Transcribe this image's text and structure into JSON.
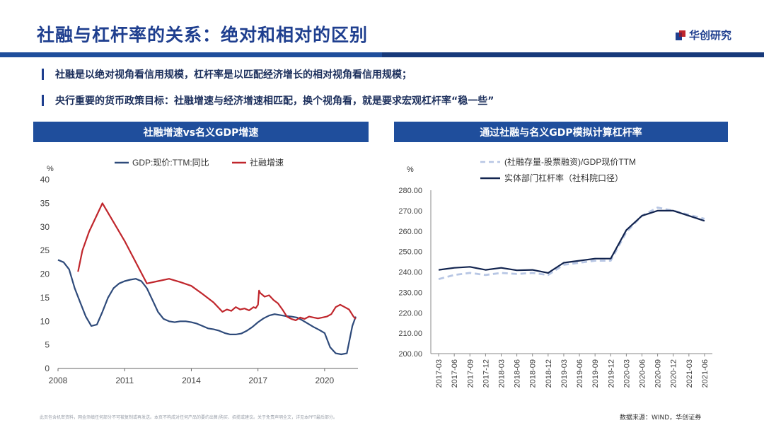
{
  "header": {
    "title": "社融与杠杆率的关系：绝对和相对的区别",
    "logo_text": "华创研究"
  },
  "bullets": [
    "社融是以绝对视角看信用规模，杠杆率是以匹配经济增长的相对视角看信用规模；",
    "央行重要的货币政策目标：社融增速与经济增速相匹配，换个视角看，就是要求宏观杠杆率“稳一些”"
  ],
  "colors": {
    "brand": "#1f3f8f",
    "series_gdp": "#2e4a7a",
    "series_tsf": "#c0262c",
    "series_dark": "#12244f",
    "series_light": "#b7c6e4"
  },
  "chart_data": [
    {
      "type": "line",
      "panel_title": "社融增速vs名义GDP增速",
      "ylabel": "%",
      "ylim": [
        0,
        40
      ],
      "yticks": [
        "0",
        "5",
        "10",
        "15",
        "20",
        "25",
        "30",
        "35",
        "40"
      ],
      "xlim": [
        2008,
        2021.5
      ],
      "xticks": [
        "2008",
        "2011",
        "2014",
        "2017",
        "2020"
      ],
      "series": [
        {
          "name": "GDP:现价:TTM:同比",
          "x": [
            2008.0,
            2008.25,
            2008.5,
            2008.75,
            2009.0,
            2009.25,
            2009.5,
            2009.75,
            2010.0,
            2010.25,
            2010.5,
            2010.75,
            2011.0,
            2011.25,
            2011.5,
            2011.75,
            2012.0,
            2012.25,
            2012.5,
            2012.75,
            2013.0,
            2013.25,
            2013.5,
            2013.75,
            2014.0,
            2014.25,
            2014.5,
            2014.75,
            2015.0,
            2015.25,
            2015.5,
            2015.75,
            2016.0,
            2016.25,
            2016.5,
            2016.75,
            2017.0,
            2017.25,
            2017.5,
            2017.75,
            2018.0,
            2018.25,
            2018.5,
            2018.75,
            2019.0,
            2019.25,
            2019.5,
            2019.75,
            2020.0,
            2020.25,
            2020.5,
            2020.75,
            2021.0,
            2021.25,
            2021.4
          ],
          "values": [
            23,
            22.5,
            21,
            17,
            14,
            11,
            9,
            9.3,
            12,
            15,
            17,
            18,
            18.5,
            18.8,
            19,
            18.5,
            17,
            14.5,
            12,
            10.5,
            10,
            9.8,
            10,
            10,
            9.8,
            9.5,
            9,
            8.5,
            8.3,
            8,
            7.5,
            7.2,
            7.2,
            7.4,
            8,
            8.8,
            9.8,
            10.6,
            11.2,
            11.5,
            11.3,
            11.1,
            11,
            10.8,
            10.2,
            9.5,
            8.8,
            8.2,
            7.5,
            4.5,
            3.2,
            3.0,
            3.2,
            9,
            11
          ]
        },
        {
          "name": "社融增速",
          "x": [
            2008.9,
            2009.1,
            2009.4,
            2009.7,
            2010.0,
            2010.5,
            2011.0,
            2011.5,
            2012.0,
            2012.5,
            2013.0,
            2013.5,
            2014.0,
            2014.5,
            2015.0,
            2015.4,
            2015.6,
            2015.8,
            2016.0,
            2016.2,
            2016.4,
            2016.6,
            2016.8,
            2016.9,
            2017.0,
            2017.05,
            2017.1,
            2017.3,
            2017.5,
            2017.7,
            2017.9,
            2018.1,
            2018.3,
            2018.5,
            2018.7,
            2018.9,
            2019.1,
            2019.3,
            2019.5,
            2019.7,
            2019.9,
            2020.1,
            2020.3,
            2020.5,
            2020.7,
            2020.9,
            2021.1,
            2021.3,
            2021.4
          ],
          "values": [
            20.5,
            25,
            29,
            32,
            35,
            31,
            27,
            22.5,
            18,
            18.5,
            19,
            18.3,
            17.5,
            15.8,
            14,
            12,
            12.5,
            12.2,
            13,
            12.5,
            12.7,
            12.3,
            13,
            12.8,
            13.5,
            16.5,
            16,
            15.2,
            15.5,
            14.5,
            13.8,
            12.5,
            11,
            10.5,
            10.2,
            10.8,
            10.5,
            11,
            10.8,
            10.6,
            10.8,
            11,
            11.5,
            13,
            13.5,
            13,
            12.5,
            11,
            10.5
          ]
        }
      ]
    },
    {
      "type": "line",
      "panel_title": "通过社融与名义GDP模拟计算杠杆率",
      "ylabel": "%",
      "ylim": [
        200,
        280
      ],
      "yticks": [
        "200.00",
        "210.00",
        "220.00",
        "230.00",
        "240.00",
        "250.00",
        "260.00",
        "270.00",
        "280.00"
      ],
      "categories": [
        "2017-03",
        "2017-06",
        "2017-09",
        "2017-12",
        "2018-03",
        "2018-06",
        "2018-09",
        "2018-12",
        "2019-03",
        "2019-06",
        "2019-09",
        "2019-12",
        "2020-03",
        "2020-06",
        "2020-09",
        "2020-12",
        "2021-03",
        "2021-06"
      ],
      "series": [
        {
          "name": "(社融存量-股票融资)/GDP现价TTM",
          "style": "dashed",
          "values": [
            236.5,
            238.5,
            239.5,
            238.5,
            239.5,
            239,
            239.5,
            238.5,
            243.5,
            244.5,
            245.5,
            245.5,
            259.5,
            267.5,
            271.5,
            270,
            268,
            266
          ]
        },
        {
          "name": "实体部门杠杆率（社科院口径）",
          "style": "solid",
          "values": [
            241,
            242,
            242.5,
            241,
            242,
            240.8,
            241,
            239.5,
            244.5,
            245.5,
            246.5,
            246.5,
            260.5,
            267.5,
            270,
            270,
            267.5,
            265
          ]
        }
      ]
    }
  ],
  "footer": {
    "disclaimer": "此页包含机密资料，网金须缜任何部分不可被复制或再发送。本页不构成对任何产品的要约出售/购买、招揽或建议。关于免责声明全文，详见本PPT最后部分。",
    "source": "数据来源：WIND，华创证券"
  }
}
